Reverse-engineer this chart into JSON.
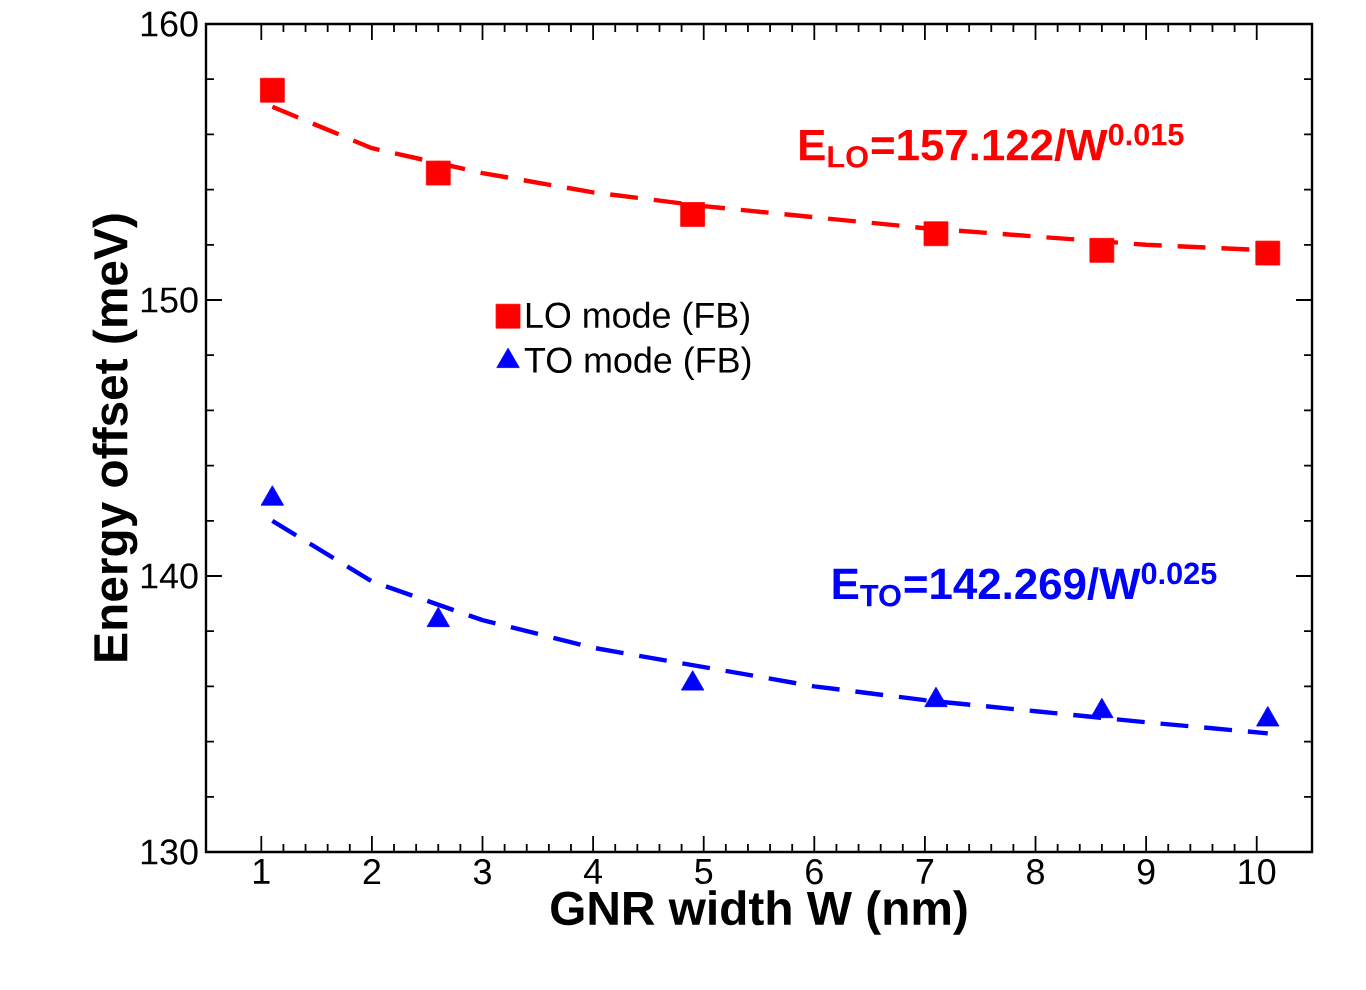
{
  "chart_data": {
    "type": "scatter",
    "xlabel": "GNR width W (nm)",
    "ylabel": "Energy offset (meV)",
    "xlim": [
      0.5,
      10.5
    ],
    "ylim": [
      130,
      160
    ],
    "xticks": [
      1,
      2,
      3,
      4,
      5,
      6,
      7,
      8,
      9,
      10
    ],
    "yticks": [
      130,
      140,
      150,
      160
    ],
    "legend": "center",
    "grid": false,
    "series": [
      {
        "name": "LO mode (FB)",
        "marker": "square",
        "color": "#ff0000",
        "x": [
          1.1,
          2.6,
          4.9,
          7.1,
          8.6,
          10.1
        ],
        "values": [
          157.6,
          154.6,
          153.1,
          152.4,
          151.8,
          151.7
        ]
      },
      {
        "name": "TO mode (FB)",
        "marker": "triangle",
        "color": "#0000ff",
        "x": [
          1.1,
          2.6,
          4.9,
          7.1,
          8.6,
          10.1
        ],
        "values": [
          142.8,
          138.4,
          136.1,
          135.5,
          135.1,
          134.8
        ]
      },
      {
        "type": "line",
        "line_style": "dashed",
        "marker": "none",
        "color": "#ff0000",
        "x": [
          1.1,
          2,
          3,
          4,
          5,
          6,
          7,
          8,
          9,
          10.1
        ],
        "values": [
          157.0,
          155.5,
          154.6,
          153.9,
          153.4,
          153.0,
          152.6,
          152.3,
          152.0,
          151.8
        ]
      },
      {
        "type": "line",
        "line_style": "dashed",
        "marker": "none",
        "color": "#0000ff",
        "x": [
          1.1,
          2,
          3,
          4,
          5,
          6,
          7,
          8,
          9,
          10.1
        ],
        "values": [
          142.0,
          139.8,
          138.4,
          137.4,
          136.7,
          136.0,
          135.5,
          135.1,
          134.7,
          134.3
        ]
      }
    ],
    "annotations": [
      "E$_{LO}$=157.122/W$^{0.015}$",
      "E$_{TO}$=142.269/W$^{0.025}$"
    ]
  }
}
